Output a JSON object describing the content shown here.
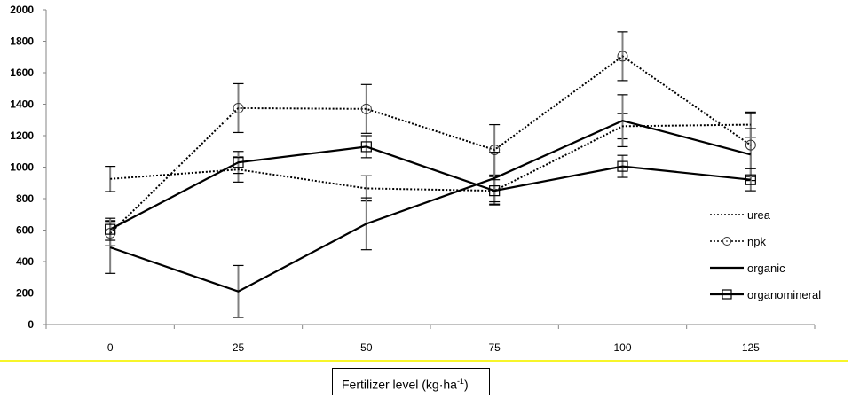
{
  "chart_data": {
    "type": "line",
    "title": "",
    "xlabel": "Fertilizer level (kg·ha-1)",
    "xlabel_main": "Fertilizer level (kg·ha",
    "xlabel_sup": "-1",
    "xlabel_close": ")",
    "ylabel": "",
    "categories": [
      "0",
      "25",
      "50",
      "75",
      "100",
      "125"
    ],
    "ylim": [
      0,
      2000
    ],
    "yticks": [
      "0",
      "200",
      "400",
      "600",
      "800",
      "1000",
      "1200",
      "1400",
      "1600",
      "1800",
      "2000"
    ],
    "ytick_values": [
      0,
      200,
      400,
      600,
      800,
      1000,
      1200,
      1400,
      1600,
      1800,
      2000
    ],
    "grid": false,
    "legend_position": "right",
    "series": [
      {
        "name": "urea",
        "style": "dotted",
        "marker": "none",
        "color": "#000000",
        "values": [
          925,
          985,
          865,
          850,
          1260,
          1270
        ],
        "errors": [
          80,
          80,
          80,
          90,
          80,
          80
        ]
      },
      {
        "name": "npk",
        "style": "dotted",
        "marker": "circle",
        "color": "#000000",
        "values": [
          580,
          1375,
          1370,
          1110,
          1705,
          1140
        ],
        "errors": [
          80,
          155,
          155,
          160,
          155,
          200
        ]
      },
      {
        "name": "organic",
        "style": "solid",
        "marker": "none",
        "color": "#000000",
        "values": [
          490,
          210,
          640,
          930,
          1295,
          1080
        ],
        "errors": [
          165,
          165,
          165,
          165,
          165,
          165
        ]
      },
      {
        "name": "organomineral",
        "style": "solid",
        "marker": "square",
        "color": "#000000",
        "values": [
          605,
          1030,
          1130,
          850,
          1005,
          920
        ],
        "errors": [
          70,
          70,
          70,
          70,
          70,
          70
        ]
      }
    ]
  }
}
